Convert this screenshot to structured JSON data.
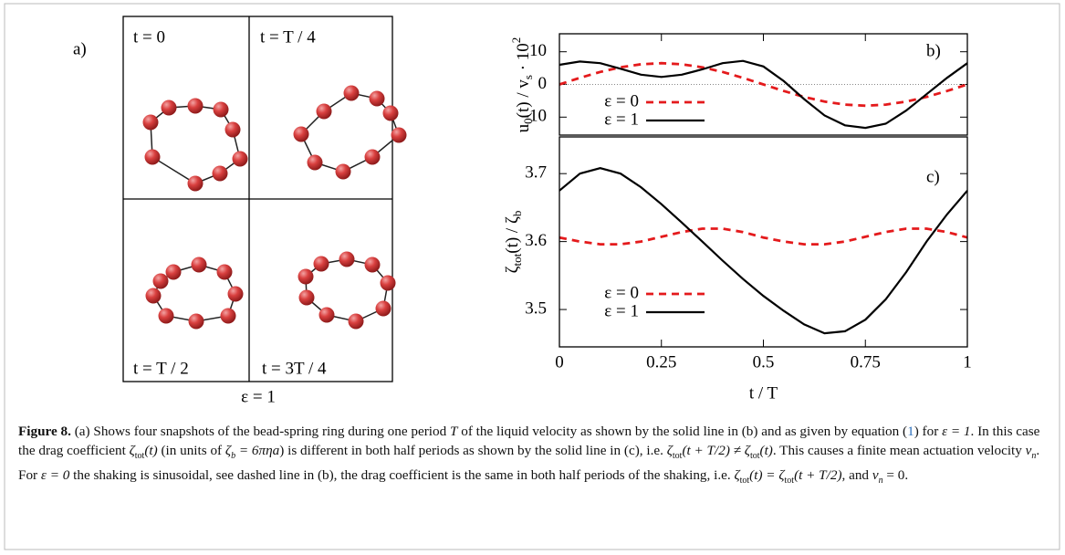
{
  "panel_a": {
    "label": "a)",
    "snapshots": [
      "t = 0",
      "t = T / 4",
      "t = T / 2",
      "t = 3T / 4"
    ],
    "footer": "ε = 1"
  },
  "chart_data": [
    {
      "type": "line",
      "panel_label": "b)",
      "ylabel": [
        "u",
        "0",
        "(t) / v",
        "s",
        " · 10",
        "2"
      ],
      "x": [
        0,
        0.05,
        0.1,
        0.15,
        0.2,
        0.25,
        0.3,
        0.35,
        0.4,
        0.45,
        0.5,
        0.55,
        0.6,
        0.65,
        0.7,
        0.75,
        0.8,
        0.85,
        0.9,
        0.95,
        1
      ],
      "xlim": [
        0,
        1
      ],
      "ylim": [
        -15.5,
        15.5
      ],
      "yticks": [
        -10,
        0,
        10
      ],
      "zero_line": true,
      "legend": "lower left",
      "series": [
        {
          "name": "ε = 0",
          "color": "#e41a1c",
          "dashed": true,
          "values": [
            0,
            2.01,
            3.82,
            5.26,
            6.18,
            6.5,
            6.18,
            5.26,
            3.82,
            2.01,
            0,
            -2.01,
            -3.82,
            -5.26,
            -6.18,
            -6.5,
            -6.18,
            -5.26,
            -3.82,
            -2.01,
            0
          ]
        },
        {
          "name": "ε = 1",
          "color": "#000000",
          "dashed": false,
          "values": [
            6.0,
            7.0,
            6.5,
            4.8,
            3.0,
            2.3,
            3.0,
            4.6,
            6.5,
            7.2,
            5.5,
            1.0,
            -4.5,
            -9.5,
            -12.5,
            -13.3,
            -12.0,
            -8.0,
            -3.0,
            2.0,
            6.5
          ]
        }
      ]
    },
    {
      "type": "line",
      "panel_label": "c)",
      "ylabel": [
        "ζ",
        "tot",
        "(t) / ζ",
        "b"
      ],
      "xlabel": "t / T",
      "x": [
        0,
        0.05,
        0.1,
        0.15,
        0.2,
        0.25,
        0.3,
        0.35,
        0.4,
        0.45,
        0.5,
        0.55,
        0.6,
        0.65,
        0.7,
        0.75,
        0.8,
        0.85,
        0.9,
        0.95,
        1
      ],
      "xlim": [
        0,
        1
      ],
      "xticks": [
        0,
        0.25,
        0.5,
        0.75,
        1
      ],
      "ylim": [
        3.445,
        3.754
      ],
      "yticks": [
        3.5,
        3.6,
        3.7
      ],
      "legend": "lower left",
      "series": [
        {
          "name": "ε = 0",
          "color": "#e41a1c",
          "dashed": true,
          "values": [
            3.606,
            3.6,
            3.596,
            3.596,
            3.6,
            3.607,
            3.614,
            3.619,
            3.619,
            3.614,
            3.606,
            3.6,
            3.596,
            3.596,
            3.6,
            3.607,
            3.614,
            3.619,
            3.619,
            3.614,
            3.606
          ]
        },
        {
          "name": "ε = 1",
          "color": "#000000",
          "dashed": false,
          "values": [
            3.675,
            3.7,
            3.708,
            3.7,
            3.68,
            3.655,
            3.628,
            3.6,
            3.572,
            3.545,
            3.52,
            3.498,
            3.478,
            3.465,
            3.468,
            3.485,
            3.515,
            3.555,
            3.6,
            3.64,
            3.675
          ]
        }
      ]
    }
  ],
  "caption": {
    "parts": [
      "Figure 8.",
      " (a) Shows four snapshots of the bead-spring ring during one period ",
      "T",
      " of the liquid velocity as shown by the solid line in (b) and as given by equation (",
      "1",
      ") for ",
      "ε = 1",
      ". In this case the drag coefficient ",
      "ζ",
      "tot",
      "(t)",
      " (in units of ",
      "ζ",
      "b",
      " = 6πηa",
      ") is different in both half periods as shown by the solid line in (c), i.e. ",
      "ζ",
      "tot",
      "(t + T/2) ≠ ζ",
      "tot",
      "(t)",
      ". This causes a finite mean actuation velocity ",
      "v",
      "n",
      ". For ",
      "ε = 0",
      " the shaking is sinusoidal, see dashed line in (b), the drag coefficient is the same in both half periods of the shaking, i.e. ",
      "ζ",
      "tot",
      "(t) = ζ",
      "tot",
      "(t + T/2)",
      ", and ",
      "v",
      "n",
      " = 0."
    ]
  }
}
